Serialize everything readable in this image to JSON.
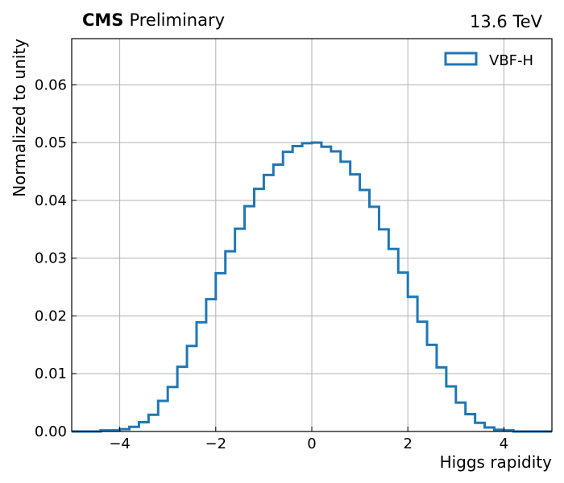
{
  "header": {
    "experiment": "CMS",
    "status": "Preliminary",
    "energy": "13.6 TeV"
  },
  "chart_data": {
    "type": "histogram",
    "xlabel": "Higgs rapidity",
    "ylabel": "Normalized to unity",
    "xlim": [
      -5,
      5
    ],
    "ylim": [
      0,
      0.068
    ],
    "xticks": [
      -4,
      -2,
      0,
      2,
      4
    ],
    "xtick_labels": [
      "−4",
      "−2",
      "0",
      "2",
      "4"
    ],
    "yticks": [
      0,
      0.01,
      0.02,
      0.03,
      0.04,
      0.05,
      0.06
    ],
    "ytick_labels": [
      "0.00",
      "0.01",
      "0.02",
      "0.03",
      "0.04",
      "0.05",
      "0.06"
    ],
    "grid": true,
    "legend_position": "top-right",
    "series": [
      {
        "name": "VBF-H",
        "color": "#1f77b4",
        "bin_edges": [
          -5.0,
          -4.8,
          -4.6,
          -4.4,
          -4.2,
          -4.0,
          -3.8,
          -3.6,
          -3.4,
          -3.2,
          -3.0,
          -2.8,
          -2.6,
          -2.4,
          -2.2,
          -2.0,
          -1.8,
          -1.6,
          -1.4,
          -1.2,
          -1.0,
          -0.8,
          -0.6,
          -0.4,
          -0.2,
          0.0,
          0.2,
          0.4,
          0.6,
          0.8,
          1.0,
          1.2,
          1.4,
          1.6,
          1.8,
          2.0,
          2.2,
          2.4,
          2.6,
          2.8,
          3.0,
          3.2,
          3.4,
          3.6,
          3.8,
          4.0,
          4.2,
          4.4,
          4.6,
          4.8,
          5.0
        ],
        "values": [
          0.0,
          0.0,
          0.0,
          0.0002,
          0.0002,
          0.0004,
          0.0008,
          0.0016,
          0.0029,
          0.0053,
          0.0077,
          0.0112,
          0.0148,
          0.0189,
          0.0229,
          0.0274,
          0.0312,
          0.0351,
          0.039,
          0.042,
          0.0444,
          0.0462,
          0.0484,
          0.0494,
          0.0499,
          0.05,
          0.0493,
          0.0485,
          0.0467,
          0.0445,
          0.0418,
          0.0389,
          0.035,
          0.0316,
          0.0275,
          0.0233,
          0.019,
          0.015,
          0.0111,
          0.0078,
          0.005,
          0.003,
          0.0015,
          0.0007,
          0.0003,
          0.0002,
          0.0,
          0.0,
          0.0,
          0.0
        ]
      }
    ]
  }
}
